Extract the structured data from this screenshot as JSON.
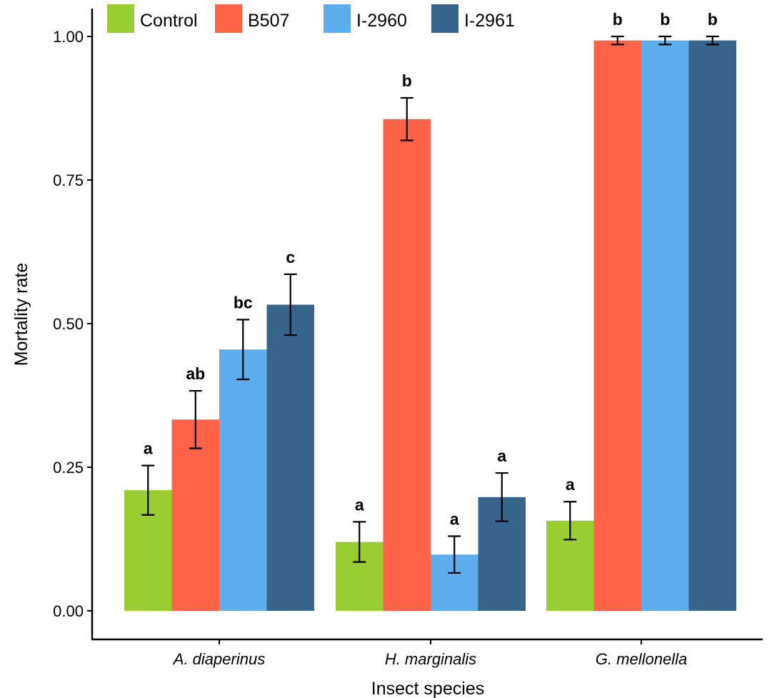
{
  "chart_data": {
    "type": "bar",
    "xlabel": "Insect species",
    "ylabel": "Mortality rate",
    "ylim": [
      0,
      1.0
    ],
    "yticks": [
      "0.00",
      "0.25",
      "0.50",
      "0.75",
      "1.00"
    ],
    "categories": [
      "A. diaperinus",
      "H. marginalis",
      "G. mellonella"
    ],
    "legend_position": "top-left",
    "grid": false,
    "series": [
      {
        "name": "Control",
        "color": "#9ACD32",
        "values": [
          0.21,
          0.12,
          0.157
        ],
        "errors": [
          0.043,
          0.035,
          0.033
        ],
        "labels": [
          "a",
          "a",
          "a"
        ]
      },
      {
        "name": "B507",
        "color": "#FF6347",
        "values": [
          0.333,
          0.856,
          0.993
        ],
        "errors": [
          0.05,
          0.037,
          0.007
        ],
        "labels": [
          "ab",
          "b",
          "b"
        ]
      },
      {
        "name": "I-2960",
        "color": "#5DADEC",
        "values": [
          0.455,
          0.098,
          0.993
        ],
        "errors": [
          0.052,
          0.032,
          0.007
        ],
        "labels": [
          "bc",
          "a",
          "b"
        ]
      },
      {
        "name": "I-2961",
        "color": "#36648B",
        "values": [
          0.533,
          0.198,
          0.993
        ],
        "errors": [
          0.053,
          0.042,
          0.007
        ],
        "labels": [
          "c",
          "a",
          "b"
        ]
      }
    ]
  }
}
